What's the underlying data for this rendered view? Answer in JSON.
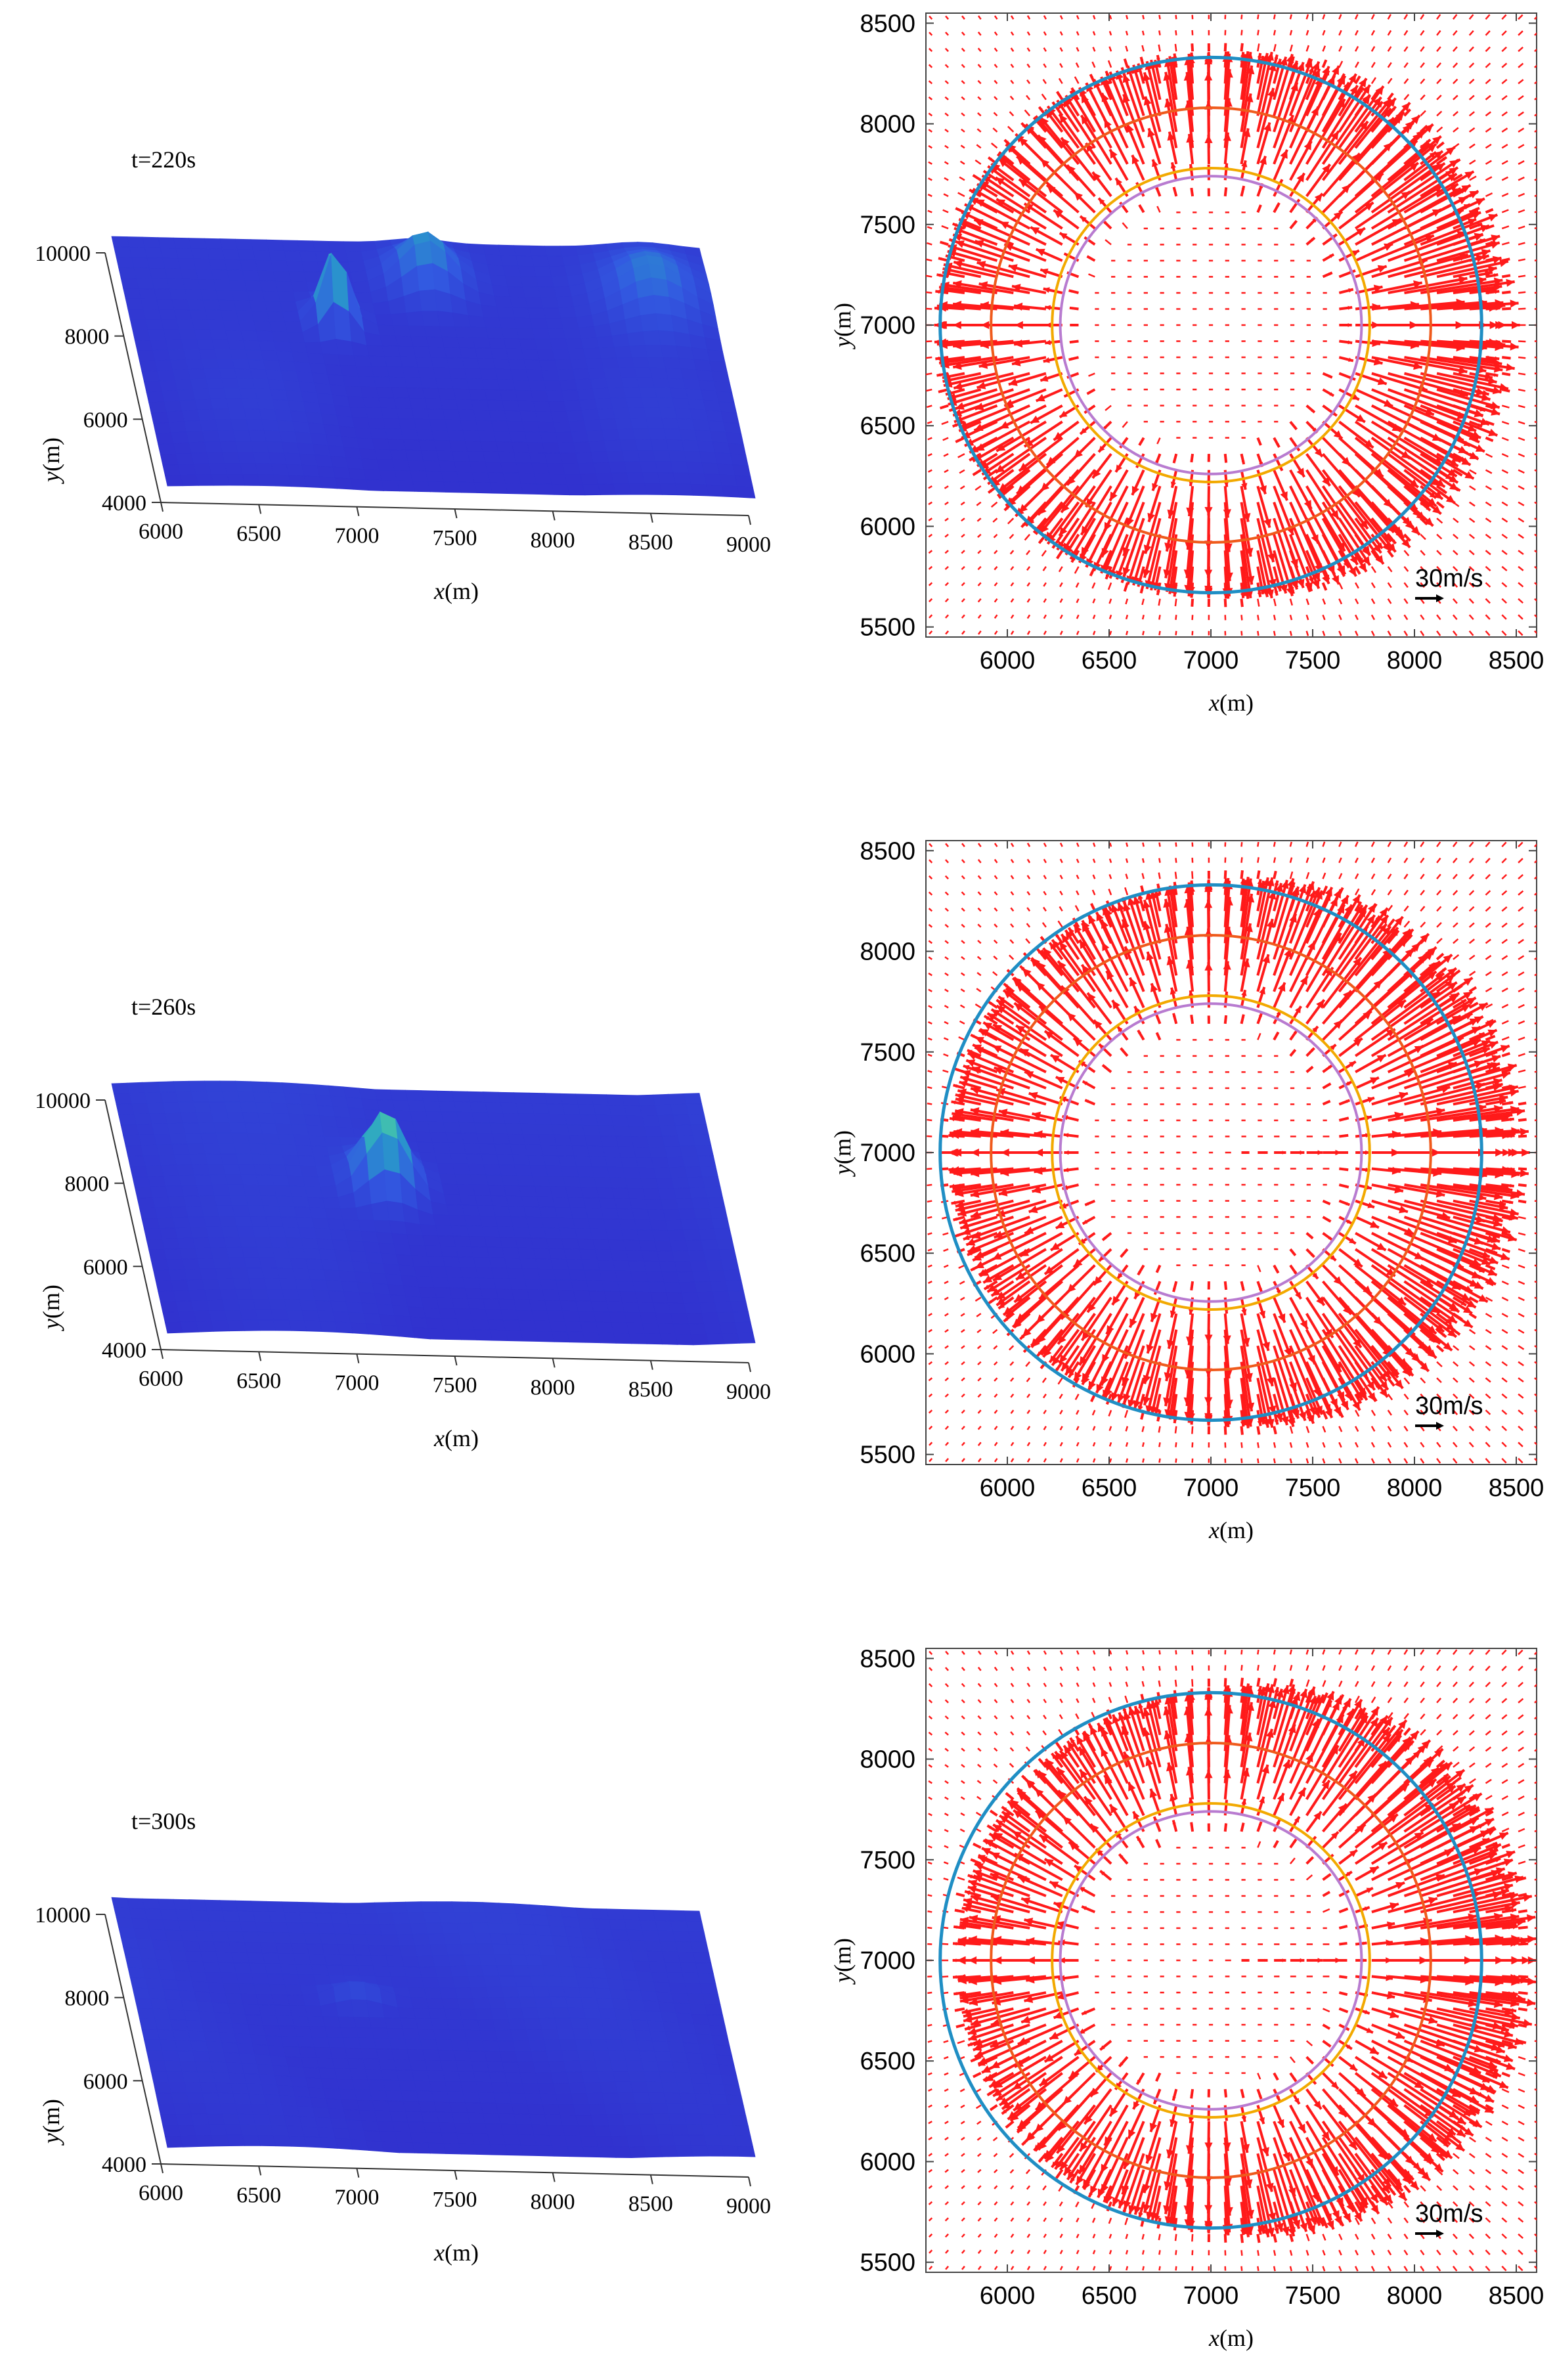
{
  "rows": [
    {
      "time": "t=220s",
      "stage": 0
    },
    {
      "time": "t=260s",
      "stage": 1
    },
    {
      "time": "t=300s",
      "stage": 2
    }
  ],
  "chart_data": [
    {
      "type": "surface",
      "xlabel": "x(m)",
      "ylabel": "y(m)",
      "x_ticks": [
        "6000",
        "6500",
        "7000",
        "7500",
        "8000",
        "8500",
        "9000"
      ],
      "y_ticks": [
        "4000",
        "6000",
        "8000",
        "10000"
      ],
      "xlim": [
        6000,
        9000
      ],
      "ylim": [
        4000,
        10000
      ]
    },
    {
      "type": "vector-field",
      "xlabel": "x(m)",
      "ylabel": "y(m)",
      "x_ticks": [
        "6000",
        "6500",
        "7000",
        "7500",
        "8000",
        "8500"
      ],
      "y_ticks": [
        "5500",
        "6000",
        "6500",
        "7000",
        "7500",
        "8000",
        "8500"
      ],
      "xlim": [
        5600,
        8600
      ],
      "ylim": [
        5450,
        8550
      ],
      "center": [
        7000,
        7000
      ],
      "circles": [
        {
          "name": "blue",
          "radius": 1330,
          "color": "#1f8ec4"
        },
        {
          "name": "orange",
          "radius": 1080,
          "color": "#ef5a1c"
        },
        {
          "name": "yellow",
          "radius": 780,
          "color": "#f2a900"
        },
        {
          "name": "purple",
          "radius": 740,
          "color": "#b87bd0"
        }
      ],
      "scale_label": "30m/s",
      "arrow_color": "#ff1a1a"
    }
  ]
}
